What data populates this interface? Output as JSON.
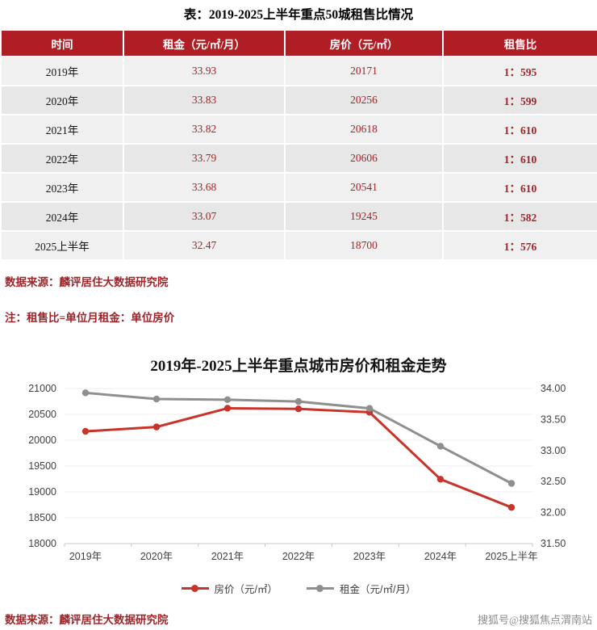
{
  "page": {
    "title": "表：2019-2025上半年重点50城租售比情况",
    "source_note": "数据来源：麟评居住大数据研究院",
    "ratio_note": "注：租售比=单位月租金：单位房价",
    "bottom_source": "数据来源：麟评居住大数据研究院",
    "watermark": "搜狐号@搜狐焦点渭南站"
  },
  "table": {
    "headers": [
      "时间",
      "租金（元/㎡/月）",
      "房价（元/㎡）",
      "租售比"
    ],
    "rows": [
      {
        "time": "2019年",
        "rent": "33.93",
        "price": "20171",
        "ratio": "1：595"
      },
      {
        "time": "2020年",
        "rent": "33.83",
        "price": "20256",
        "ratio": "1：599"
      },
      {
        "time": "2021年",
        "rent": "33.82",
        "price": "20618",
        "ratio": "1：610"
      },
      {
        "time": "2022年",
        "rent": "33.79",
        "price": "20606",
        "ratio": "1：610"
      },
      {
        "time": "2023年",
        "rent": "33.68",
        "price": "20541",
        "ratio": "1：610"
      },
      {
        "time": "2024年",
        "rent": "33.07",
        "price": "19245",
        "ratio": "1：582"
      },
      {
        "time": "2025上半年",
        "rent": "32.47",
        "price": "18700",
        "ratio": "1：576"
      }
    ]
  },
  "chart_data": {
    "type": "line",
    "title": "2019年-2025上半年重点城市房价和租金走势",
    "categories": [
      "2019年",
      "2020年",
      "2021年",
      "2022年",
      "2023年",
      "2024年",
      "2025上半年"
    ],
    "series": [
      {
        "name": "房价（元/㎡）",
        "axis": "left",
        "color": "#c7342a",
        "values": [
          20171,
          20256,
          20618,
          20606,
          20541,
          19245,
          18700
        ]
      },
      {
        "name": "租金（元/㎡/月）",
        "axis": "right",
        "color": "#8f8f8f",
        "values": [
          33.93,
          33.83,
          33.82,
          33.79,
          33.68,
          33.07,
          32.47
        ]
      }
    ],
    "left_axis": {
      "min": 18000,
      "max": 21000,
      "step": 500
    },
    "right_axis": {
      "min": 31.5,
      "max": 34.0,
      "step": 0.5
    },
    "legend_position": "bottom",
    "grid": true
  },
  "colors": {
    "header_bg": "#ae1e24",
    "table_value_red": "#9e2429",
    "row_light": "#f0f0f0",
    "row_dark": "#e7e7e7",
    "price_line": "#c7342a",
    "rent_line": "#8f8f8f",
    "watermark_gray": "#8c8c8c"
  }
}
